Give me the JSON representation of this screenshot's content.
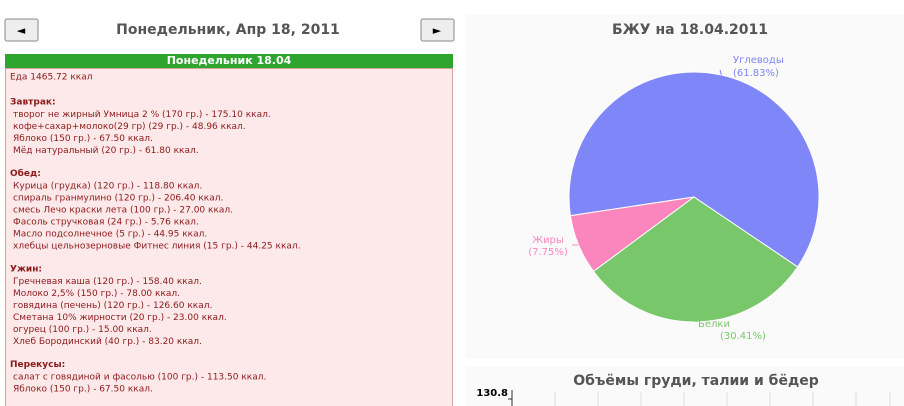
{
  "nav": {
    "prev": "◄",
    "date": "Понедельник, Апр 18, 2011",
    "next": "►"
  },
  "diary": {
    "title": "Понедельник 18.04",
    "total": "Еда 1465.72 ккал",
    "sections": [
      {
        "heading": "Завтрак:",
        "items": [
          "творог не жирный Умница 2 % (170 гр.) - 175.10 ккал.",
          "кофе+сахар+молоко(29 гр) (29 гр.) - 48.96 ккал.",
          "Яблоко (150 гр.) - 67.50 ккал.",
          "Мёд натуральный (20 гр.) - 61.80 ккал."
        ]
      },
      {
        "heading": "Обед:",
        "items": [
          "Курица (грудка) (120 гр.) - 118.80 ккал.",
          "спираль гранмулино (120 гр.) - 206.40 ккал.",
          "смесь Лечо краски лета (100 гр.) - 27.00 ккал.",
          "Фасоль стручковая (24 гр.) - 5.76 ккал.",
          "Масло подсолнечное (5 гр.) - 44.95 ккал.",
          "хлебцы цельнозерновые Фитнес линия (15 гр.) - 44.25 ккал."
        ]
      },
      {
        "heading": "Ужин:",
        "items": [
          "Гречневая каша (120 гр.) - 158.40 ккал.",
          "Молоко 2,5% (150 гр.) - 78.00 ккал.",
          "говядина (печень) (120 гр.) - 126.60 ккал.",
          "Сметана 10% жирности (20 гр.) - 23.00 ккал.",
          "огурец (100 гр.) - 15.00 ккал.",
          "Хлеб Бородинский (40 гр.) - 83.20 ккал."
        ]
      },
      {
        "heading": "Перекусы:",
        "items": [
          "салат с говядиной и фасолью (100 гр.) - 113.50 ккал.",
          "Яблоко (150 гр.) - 67.50 ккал."
        ]
      }
    ]
  },
  "chart_data": {
    "type": "pie",
    "title": "БЖУ на 18.04.2011",
    "categories": [
      "Углеводы",
      "Жиры",
      "Белки"
    ],
    "values": [
      61.83,
      7.75,
      30.41
    ],
    "value_labels": [
      "(61.83%)",
      "(7.75%)",
      "(30.41%)"
    ],
    "colors": [
      "#7f86f7",
      "#fb86bd",
      "#78c76b"
    ]
  },
  "volume_chart": {
    "title": "Объёмы груди, талии и бёдер",
    "yticks": [
      130.8
    ]
  }
}
